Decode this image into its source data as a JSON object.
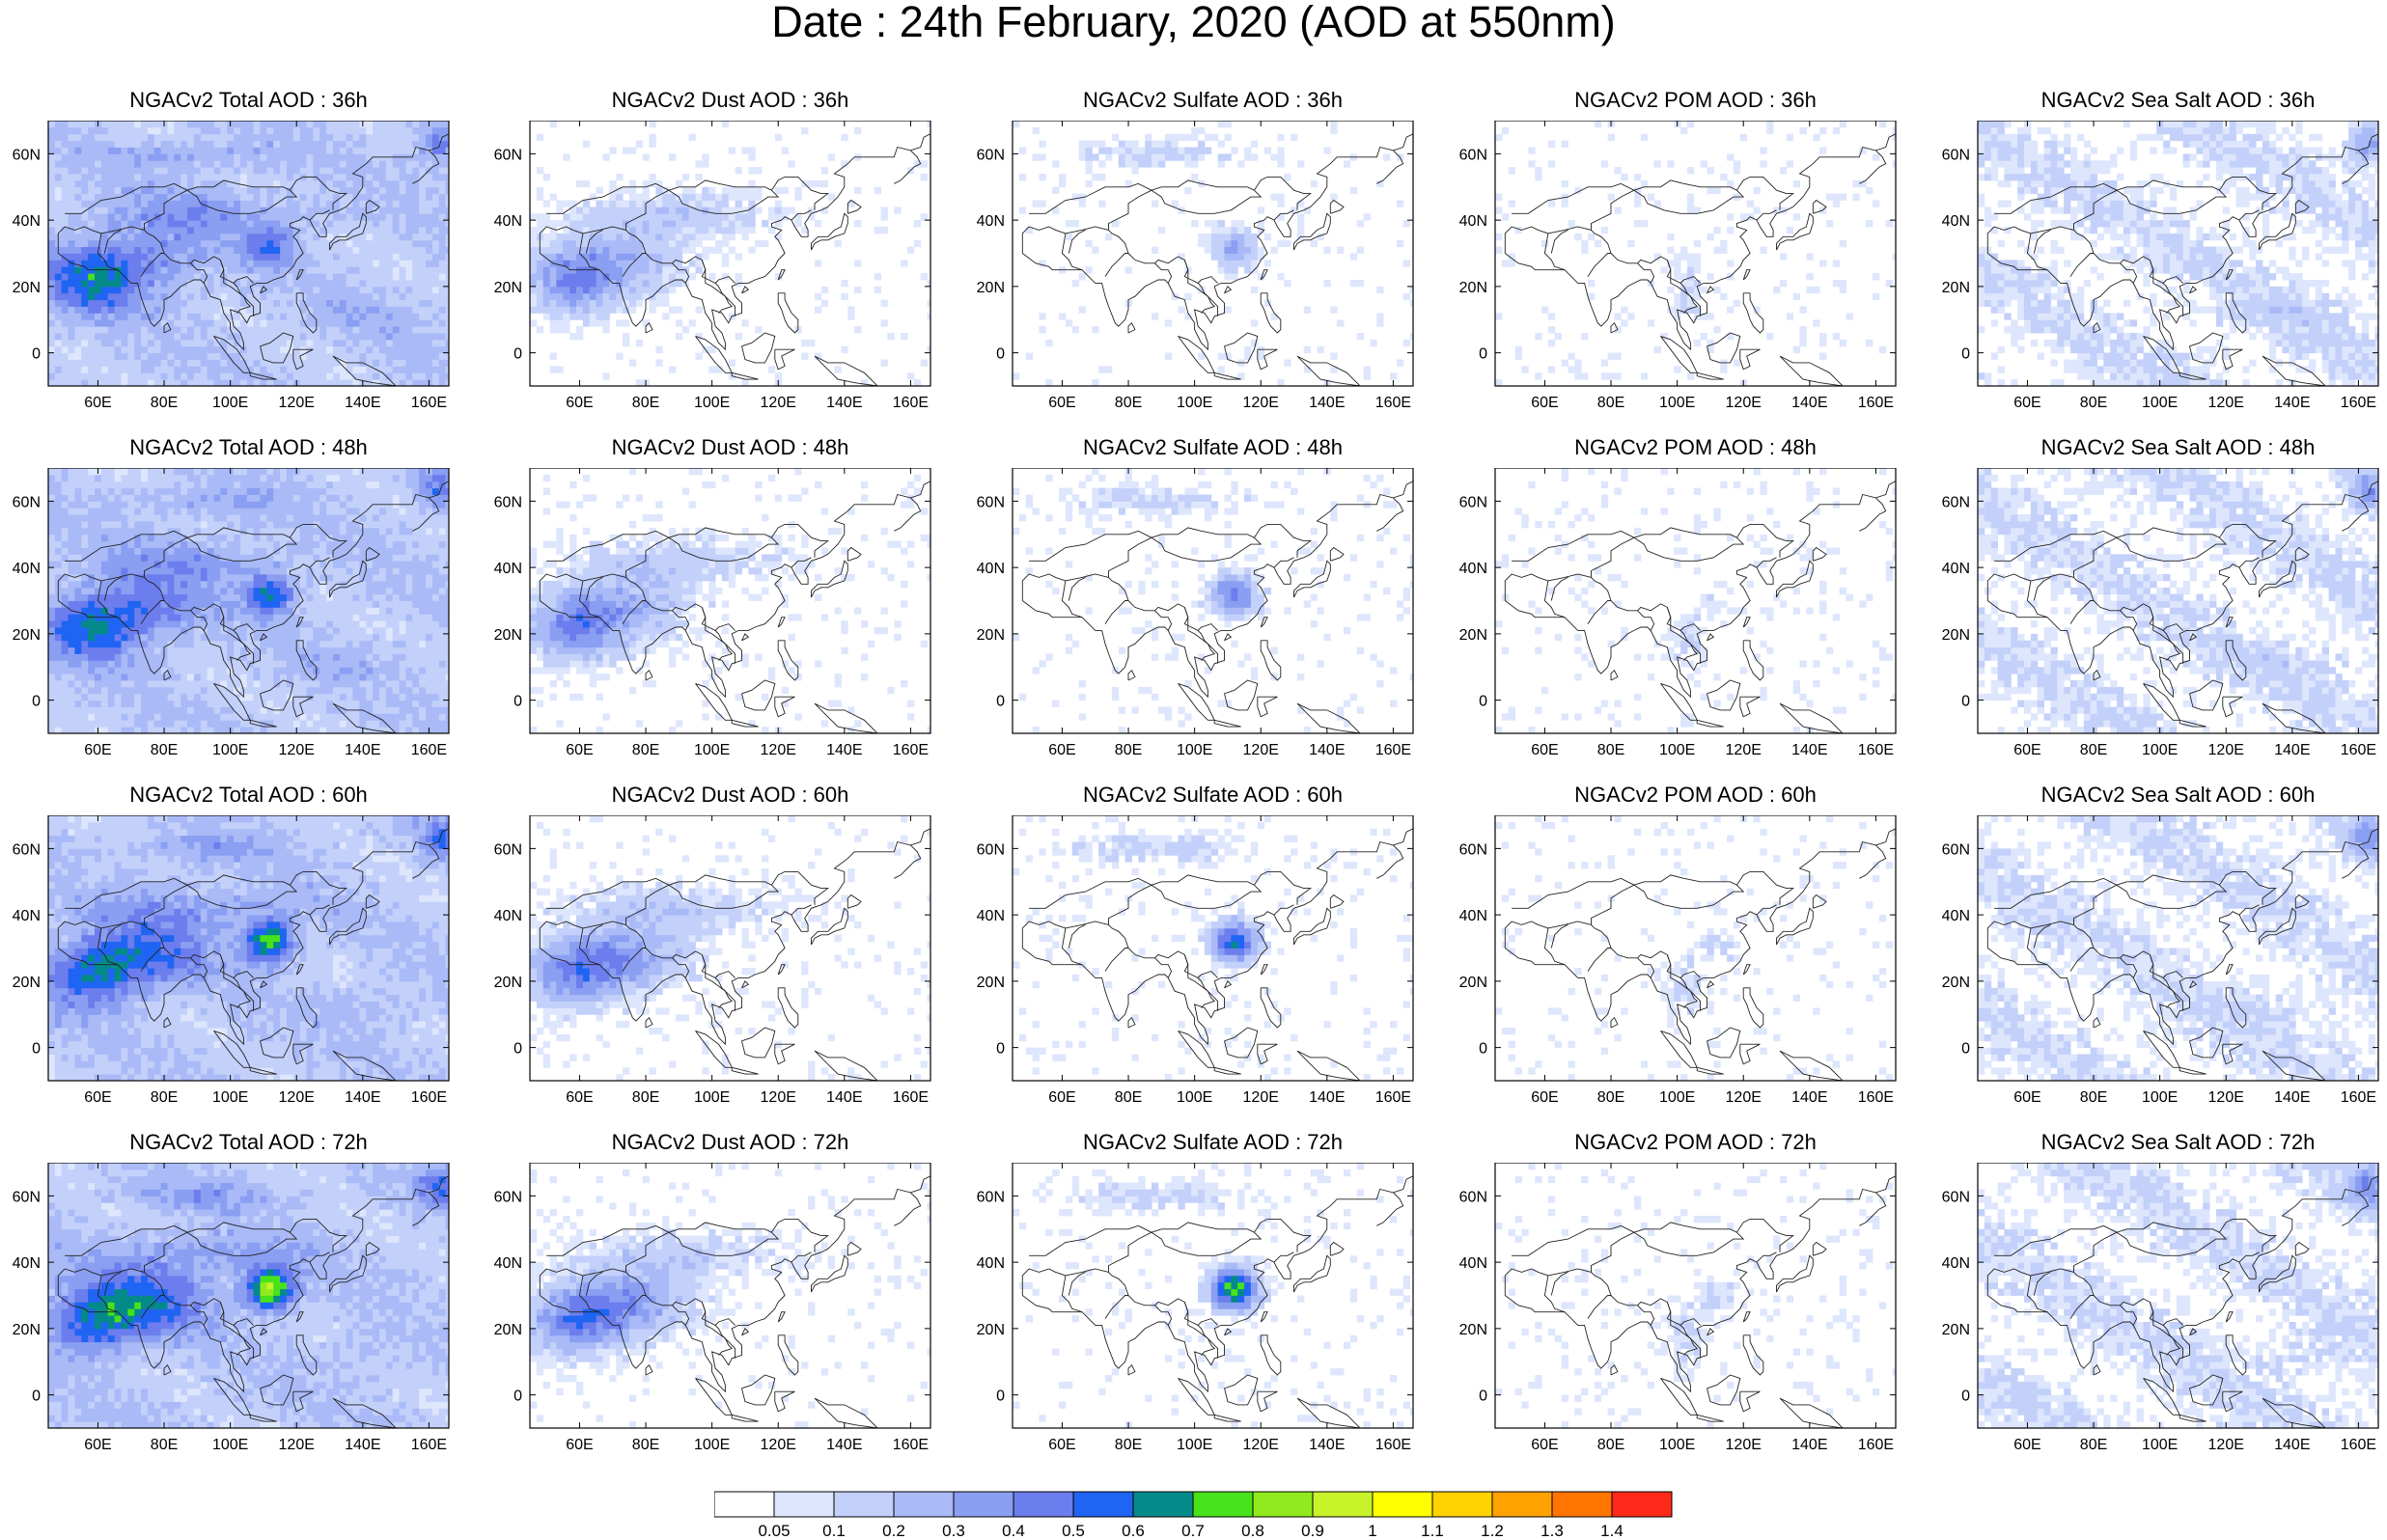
{
  "title": "Date : 24th February, 2020 (AOD at 550nm)",
  "columns": [
    {
      "key": "total",
      "titles": [
        "NGACv2 Total AOD : 36h",
        "NGACv2 Total AOD : 48h",
        "NGACv2 Total AOD : 60h",
        "NGACv2 Total AOD : 72h"
      ]
    },
    {
      "key": "dust",
      "titles": [
        "NGACv2 Dust AOD : 36h",
        "NGACv2 Dust AOD : 48h",
        "NGACv2 Dust AOD : 60h",
        "NGACv2 Dust AOD : 72h"
      ]
    },
    {
      "key": "sulfate",
      "titles": [
        "NGACv2 Sulfate AOD : 36h",
        "NGACv2 Sulfate AOD : 48h",
        "NGACv2 Sulfate AOD : 60h",
        "NGACv2 Sulfate AOD : 72h"
      ]
    },
    {
      "key": "pom",
      "titles": [
        "NGACv2 POM AOD : 36h",
        "NGACv2 POM AOD : 48h",
        "NGACv2 POM AOD : 60h",
        "NGACv2 POM AOD : 72h"
      ]
    },
    {
      "key": "seasalt",
      "titles": [
        "NGACv2 Sea Salt AOD : 36h",
        "NGACv2 Sea Salt AOD : 48h",
        "NGACv2 Sea Salt AOD : 60h",
        "NGACv2 Sea Salt  AOD : 72h"
      ]
    }
  ],
  "axes": {
    "lon_ticks": [
      "60E",
      "80E",
      "100E",
      "120E",
      "140E",
      "160E"
    ],
    "lat_ticks": [
      "60N",
      "40N",
      "20N",
      "0"
    ]
  },
  "colorbar": {
    "labels": [
      "0.05",
      "0.1",
      "0.2",
      "0.3",
      "0.4",
      "0.5",
      "0.6",
      "0.7",
      "0.8",
      "0.9",
      "1",
      "1.1",
      "1.2",
      "1.3",
      "1.4"
    ],
    "colors": [
      "#ffffff",
      "#dde6fc",
      "#c3d0fa",
      "#a9baf7",
      "#8a9ef2",
      "#6c7ded",
      "#1f64f2",
      "#058a8a",
      "#48e21b",
      "#8fea1e",
      "#c8f22a",
      "#ffff00",
      "#ffd200",
      "#ffa200",
      "#ff7500",
      "#ff2a1a"
    ]
  }
}
